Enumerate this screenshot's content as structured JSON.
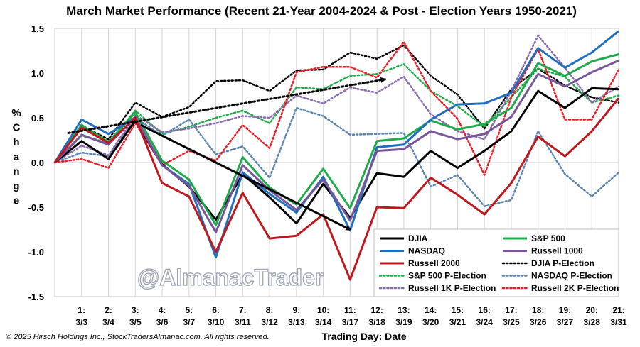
{
  "copyright": "© 2025 Hirsch Holdings Inc., StockTradersAlmanac.com. All rights reserved.",
  "watermark": "@AlmanacTrader",
  "chart_data": {
    "type": "line",
    "title": "March Market Performance (Recent 21-Year 2004-2024 & Post - Election Years 1950-2021)",
    "xlabel": "Trading Day: Date",
    "ylabel": "% Change",
    "ylim": [
      -1.5,
      1.5
    ],
    "yticks": [
      "1.5",
      "1.0",
      "0.5",
      "0.0",
      "-0.5",
      "-1.0",
      "-1.5"
    ],
    "categories": [
      "0",
      "1: 3/3",
      "2: 3/4",
      "3: 3/5",
      "4: 3/6",
      "5: 3/7",
      "6: 3/10",
      "7: 3/11",
      "8: 3/12",
      "9: 3/13",
      "10: 3/14",
      "11: 3/17",
      "12: 3/18",
      "13: 3/19",
      "14: 3/20",
      "15: 3/21",
      "16: 3/24",
      "17: 3/25",
      "18: 3/26",
      "19: 3/27",
      "20: 3/28",
      "21: 3/31"
    ],
    "tick_top": [
      "",
      "1:",
      "2:",
      "3:",
      "4:",
      "5:",
      "6:",
      "7:",
      "8:",
      "9:",
      "10:",
      "11:",
      "12:",
      "13:",
      "14:",
      "15:",
      "16:",
      "17:",
      "18:",
      "19:",
      "20:",
      "21:"
    ],
    "tick_bottom": [
      "",
      "3/3",
      "3/4",
      "3/5",
      "3/6",
      "3/7",
      "3/10",
      "3/11",
      "3/12",
      "3/13",
      "3/14",
      "3/17",
      "3/18",
      "3/19",
      "3/20",
      "3/21",
      "3/24",
      "3/25",
      "3/26",
      "3/27",
      "3/28",
      "3/31"
    ],
    "grid": "vertical",
    "legend_position": "bottom-right",
    "series": [
      {
        "name": "DJIA",
        "color": "#000000",
        "style": "solid",
        "values": [
          0,
          0.24,
          0.04,
          0.47,
          -0.02,
          -0.27,
          -0.64,
          -0.13,
          -0.39,
          -0.68,
          -0.24,
          -0.62,
          -0.12,
          -0.16,
          0.13,
          -0.06,
          0.13,
          0.35,
          0.8,
          0.61,
          0.83,
          0.82
        ]
      },
      {
        "name": "S&P 500",
        "color": "#1faa4b",
        "style": "solid",
        "values": [
          0,
          0.42,
          0.23,
          0.56,
          0.02,
          -0.19,
          -0.7,
          0.06,
          -0.28,
          -0.47,
          -0.07,
          -0.51,
          0.24,
          0.27,
          0.47,
          0.37,
          0.43,
          0.61,
          1.11,
          0.97,
          1.13,
          1.21
        ]
      },
      {
        "name": "NASDAQ",
        "color": "#1f6fbf",
        "style": "solid",
        "values": [
          0,
          0.48,
          0.32,
          0.5,
          -0.03,
          -0.24,
          -1.06,
          -0.11,
          -0.35,
          -0.56,
          -0.16,
          -0.76,
          0.17,
          0.2,
          0.48,
          0.65,
          0.66,
          0.78,
          1.28,
          1.06,
          1.23,
          1.47
        ]
      },
      {
        "name": "Russell 1000",
        "color": "#77569a",
        "style": "solid",
        "values": [
          0,
          0.31,
          0.2,
          0.51,
          -0.03,
          -0.26,
          -0.78,
          -0.03,
          -0.31,
          -0.53,
          -0.19,
          -0.65,
          0.13,
          0.15,
          0.35,
          0.26,
          0.32,
          0.51,
          0.99,
          0.85,
          1.01,
          1.14
        ]
      },
      {
        "name": "Russell 2000",
        "color": "#c0171c",
        "style": "solid",
        "values": [
          0,
          0.39,
          0.22,
          0.5,
          -0.23,
          -0.38,
          -1.0,
          -0.34,
          -0.85,
          -0.82,
          -0.58,
          -1.31,
          -0.5,
          -0.51,
          -0.17,
          -0.36,
          -0.58,
          -0.23,
          0.29,
          0.07,
          0.35,
          0.72
        ]
      },
      {
        "name": "DJIA P-Election",
        "color": "#000000",
        "style": "dotted",
        "values": [
          0,
          0.41,
          0.26,
          0.67,
          0.51,
          0.62,
          0.91,
          0.92,
          0.8,
          1.03,
          1.04,
          1.23,
          1.16,
          1.31,
          0.97,
          0.76,
          0.38,
          0.82,
          1.05,
          0.86,
          0.73,
          0.67
        ]
      },
      {
        "name": "S&P 500 P-Election",
        "color": "#1faa4b",
        "style": "dotted",
        "values": [
          0,
          0.3,
          0.22,
          0.58,
          0.32,
          0.4,
          0.5,
          0.58,
          0.44,
          0.84,
          0.82,
          0.97,
          0.99,
          1.1,
          0.8,
          0.63,
          0.4,
          0.73,
          1.05,
          0.96,
          0.67,
          0.75
        ]
      },
      {
        "name": "NASDAQ P-Election",
        "color": "#5a86b0",
        "style": "dotted",
        "values": [
          0,
          0.11,
          0.07,
          0.5,
          0.3,
          0.48,
          0.09,
          0.18,
          -0.17,
          0.61,
          0.52,
          0.31,
          0.32,
          0.33,
          -0.27,
          -0.14,
          -0.49,
          -0.42,
          0.35,
          -0.13,
          -0.38,
          -0.11
        ]
      },
      {
        "name": "Russell 1K P-Election",
        "color": "#8a6bb0",
        "style": "dotted",
        "values": [
          0,
          0.19,
          0.08,
          0.53,
          0.34,
          0.38,
          0.44,
          0.52,
          0.5,
          0.75,
          0.66,
          0.84,
          0.78,
          0.96,
          0.54,
          0.35,
          0.26,
          0.8,
          1.42,
          1.06,
          0.67,
          0.85
        ]
      },
      {
        "name": "Russell 2K P-Election",
        "color": "#ee1c25",
        "style": "dotted",
        "values": [
          0,
          0.04,
          -0.06,
          0.44,
          -0.03,
          0.13,
          0.02,
          0.42,
          0.16,
          1.01,
          1.07,
          1.07,
          0.95,
          1.35,
          0.8,
          0.49,
          -0.14,
          0.73,
          1.27,
          0.48,
          0.48,
          1.04
        ]
      }
    ],
    "annotations": [
      {
        "type": "arrow",
        "style": "dotted",
        "color": "#000000",
        "from": [
          0.5,
          0.33
        ],
        "to": [
          12.3,
          0.93
        ]
      },
      {
        "type": "arrow",
        "style": "solid",
        "color": "#000000",
        "from": [
          3.2,
          0.42
        ],
        "to": [
          11.0,
          -0.75
        ]
      }
    ]
  }
}
